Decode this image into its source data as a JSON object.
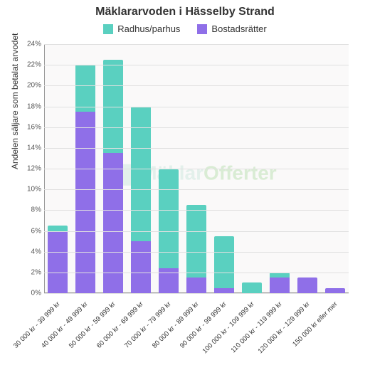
{
  "chart": {
    "type": "stacked-bar",
    "title": "Mäklararvoden i Hässelby Strand",
    "title_fontsize": 16,
    "y_axis_title": "Andelen säljare som betalat arvodet",
    "label_fontsize": 12,
    "tick_fontsize": 10,
    "background_color": "#faf9f9",
    "grid_color": "#e0e0e0",
    "axis_color": "#999999",
    "text_color": "#333333",
    "y_max": 24,
    "y_tick_step": 2,
    "y_tick_suffix": "%",
    "bar_width_ratio": 0.72,
    "watermark": {
      "text_a": "Mäklar",
      "text_b": "Offerter"
    },
    "legend": [
      {
        "key": "radhus",
        "label": "Radhus/parhus",
        "color": "#5ad0c0"
      },
      {
        "key": "bostads",
        "label": "Bostadsrätter",
        "color": "#8f6fe8"
      }
    ],
    "categories": [
      "30 000 kr - 39 999 kr",
      "40 000 kr - 49 999 kr",
      "50 000 kr - 59 999 kr",
      "60 000 kr - 69 999 kr",
      "70 000 kr - 79 999 kr",
      "80 000 kr - 89 999 kr",
      "90 000 kr - 99 999 kr",
      "100 000 kr - 109 999 kr",
      "110 000 kr - 119 999 kr",
      "120 000 kr - 129 999 kr",
      "150 000 kr eller mer"
    ],
    "series": {
      "bostads": [
        6.0,
        17.5,
        13.5,
        5.0,
        2.4,
        1.5,
        0.5,
        0.0,
        1.5,
        1.5,
        0.5
      ],
      "radhus": [
        0.5,
        4.5,
        9.0,
        13.0,
        9.5,
        7.0,
        5.0,
        1.0,
        0.5,
        0.0,
        0.0
      ]
    }
  }
}
